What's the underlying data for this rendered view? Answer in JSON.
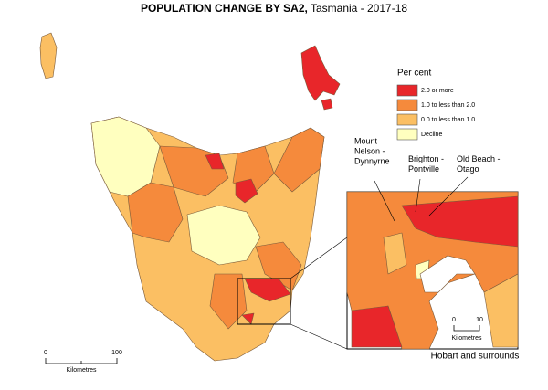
{
  "title_bold": "POPULATION CHANGE BY SA2,",
  "title_rest": "Tasmania - 2017-18",
  "legend": {
    "title": "Per cent",
    "items": [
      {
        "label": "2.0 or more",
        "color": "#e8262a"
      },
      {
        "label": "1.0 to less than 2.0",
        "color": "#f58a3c"
      },
      {
        "label": "0.0 to less than 1.0",
        "color": "#fbbf63"
      },
      {
        "label": "Decline",
        "color": "#ffffbf"
      }
    ]
  },
  "callouts": [
    {
      "lines": [
        "Mount",
        "Nelson -",
        "Dynnyrne"
      ]
    },
    {
      "lines": [
        "Brighton -",
        "Pontville"
      ]
    },
    {
      "lines": [
        "Old Beach -",
        "Otago"
      ]
    }
  ],
  "scale": {
    "ticks": [
      0,
      100
    ],
    "unit": "Kilometres"
  },
  "inset": {
    "title": "Hobart and surrounds",
    "scale": {
      "ticks": [
        0,
        10
      ],
      "unit": "Kilometres"
    }
  }
}
